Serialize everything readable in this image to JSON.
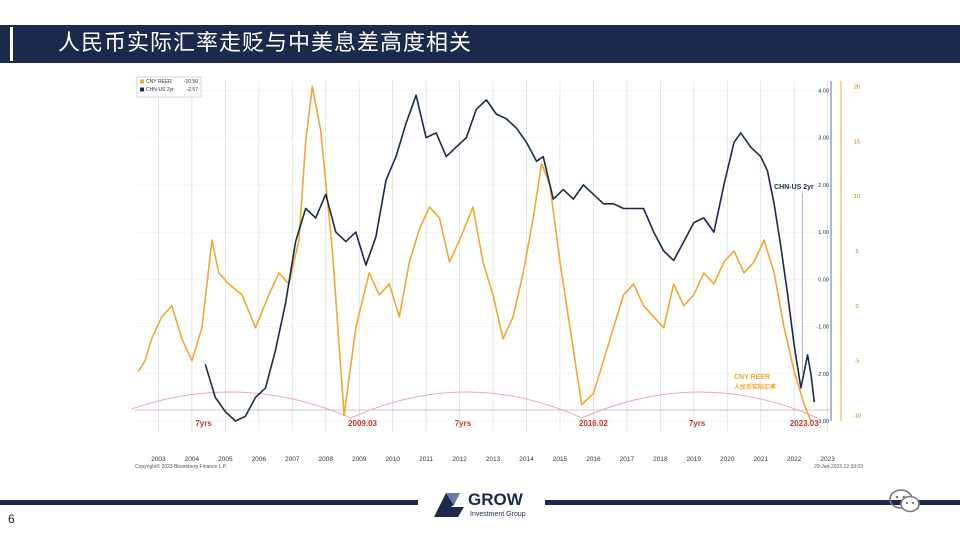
{
  "slide": {
    "title": "人民币实际汇率走贬与中美息差高度相关",
    "page_number": "6",
    "logo_text": "GROW",
    "logo_subtext": "Investment Group",
    "colors": {
      "navy": "#1b2a4c",
      "gold": "#f0a830",
      "pink": "#f2a4b4",
      "crimson": "#c0392b",
      "grid": "#dcdcdc"
    }
  },
  "chart_data": {
    "type": "line",
    "legend": [
      {
        "name": "CNY REER",
        "value": "-10.50",
        "color": "#f0a830"
      },
      {
        "name": "CHN-US 2yr",
        "value": "-2.57",
        "color": "#1b2a4c"
      }
    ],
    "legend_position": "top-left",
    "grid": true,
    "x_ticks": [
      "2003",
      "2004",
      "2005",
      "2006",
      "2007",
      "2008",
      "2009",
      "2010",
      "2011",
      "2012",
      "2013",
      "2014",
      "2015",
      "2016",
      "2017",
      "2018",
      "2019",
      "2020",
      "2021",
      "2022",
      "2023"
    ],
    "xlim": [
      2002.8,
      2023.6
    ],
    "left_axis": {
      "ticks": [
        "4.00",
        "3.00",
        "2.00",
        "1.00",
        "0.00",
        "-1.00",
        "-2.00",
        "-3.00"
      ],
      "range": [
        -3.0,
        4.2
      ]
    },
    "right_axis": {
      "ticks": [
        "20",
        "15",
        "10",
        "5",
        "0",
        "-5",
        "-10"
      ],
      "range": [
        -10.5,
        20.5
      ]
    },
    "series": [
      {
        "name": "CNY REER",
        "axis": "right",
        "points": [
          [
            2002.9,
            -6
          ],
          [
            2003.1,
            -5
          ],
          [
            2003.3,
            -3
          ],
          [
            2003.6,
            -1
          ],
          [
            2003.9,
            0
          ],
          [
            2004.2,
            -3
          ],
          [
            2004.5,
            -5
          ],
          [
            2004.8,
            -2
          ],
          [
            2005.1,
            6
          ],
          [
            2005.3,
            3
          ],
          [
            2005.6,
            2
          ],
          [
            2006.0,
            1
          ],
          [
            2006.4,
            -2
          ],
          [
            2006.8,
            1
          ],
          [
            2007.1,
            3
          ],
          [
            2007.4,
            2
          ],
          [
            2007.7,
            6
          ],
          [
            2007.9,
            15
          ],
          [
            2008.1,
            20
          ],
          [
            2008.35,
            16
          ],
          [
            2008.7,
            5
          ],
          [
            2009.05,
            -10
          ],
          [
            2009.4,
            -2
          ],
          [
            2009.8,
            3
          ],
          [
            2010.1,
            1
          ],
          [
            2010.4,
            2
          ],
          [
            2010.7,
            -1
          ],
          [
            2011.0,
            4
          ],
          [
            2011.3,
            7
          ],
          [
            2011.6,
            9
          ],
          [
            2011.9,
            8
          ],
          [
            2012.2,
            4
          ],
          [
            2012.5,
            6
          ],
          [
            2012.9,
            9
          ],
          [
            2013.2,
            4
          ],
          [
            2013.5,
            1
          ],
          [
            2013.8,
            -3
          ],
          [
            2014.1,
            -1
          ],
          [
            2014.4,
            3
          ],
          [
            2014.7,
            8
          ],
          [
            2014.95,
            13
          ],
          [
            2015.2,
            11
          ],
          [
            2015.5,
            4
          ],
          [
            2015.8,
            -2
          ],
          [
            2016.15,
            -9
          ],
          [
            2016.5,
            -8
          ],
          [
            2016.8,
            -5
          ],
          [
            2017.1,
            -2
          ],
          [
            2017.4,
            1
          ],
          [
            2017.7,
            2
          ],
          [
            2018.0,
            0
          ],
          [
            2018.3,
            -1
          ],
          [
            2018.6,
            -2
          ],
          [
            2018.9,
            2
          ],
          [
            2019.2,
            0
          ],
          [
            2019.5,
            1
          ],
          [
            2019.8,
            3
          ],
          [
            2020.1,
            2
          ],
          [
            2020.4,
            4
          ],
          [
            2020.7,
            5
          ],
          [
            2021.0,
            3
          ],
          [
            2021.3,
            4
          ],
          [
            2021.6,
            6
          ],
          [
            2021.9,
            3
          ],
          [
            2022.2,
            -2
          ],
          [
            2022.5,
            -6
          ],
          [
            2022.8,
            -9
          ],
          [
            2023.0,
            -10.5
          ]
        ]
      },
      {
        "name": "CHN-US 2yr",
        "axis": "left",
        "points": [
          [
            2004.9,
            -1.8
          ],
          [
            2005.2,
            -2.5
          ],
          [
            2005.5,
            -2.8
          ],
          [
            2005.8,
            -3.0
          ],
          [
            2006.1,
            -2.9
          ],
          [
            2006.4,
            -2.5
          ],
          [
            2006.7,
            -2.3
          ],
          [
            2007.0,
            -1.5
          ],
          [
            2007.3,
            -0.5
          ],
          [
            2007.6,
            0.8
          ],
          [
            2007.9,
            1.5
          ],
          [
            2008.2,
            1.3
          ],
          [
            2008.5,
            1.8
          ],
          [
            2008.8,
            1.0
          ],
          [
            2009.1,
            0.8
          ],
          [
            2009.4,
            1.0
          ],
          [
            2009.7,
            0.3
          ],
          [
            2010.0,
            0.9
          ],
          [
            2010.3,
            2.1
          ],
          [
            2010.6,
            2.6
          ],
          [
            2010.9,
            3.3
          ],
          [
            2011.2,
            3.9
          ],
          [
            2011.5,
            3.0
          ],
          [
            2011.8,
            3.1
          ],
          [
            2012.1,
            2.6
          ],
          [
            2012.4,
            2.8
          ],
          [
            2012.7,
            3.0
          ],
          [
            2013.0,
            3.6
          ],
          [
            2013.3,
            3.8
          ],
          [
            2013.6,
            3.5
          ],
          [
            2013.9,
            3.4
          ],
          [
            2014.2,
            3.2
          ],
          [
            2014.5,
            2.9
          ],
          [
            2014.8,
            2.5
          ],
          [
            2015.0,
            2.6
          ],
          [
            2015.3,
            1.7
          ],
          [
            2015.6,
            1.9
          ],
          [
            2015.9,
            1.7
          ],
          [
            2016.2,
            2.0
          ],
          [
            2016.5,
            1.8
          ],
          [
            2016.8,
            1.6
          ],
          [
            2017.1,
            1.6
          ],
          [
            2017.4,
            1.5
          ],
          [
            2017.7,
            1.5
          ],
          [
            2018.0,
            1.5
          ],
          [
            2018.3,
            1.0
          ],
          [
            2018.6,
            0.6
          ],
          [
            2018.9,
            0.4
          ],
          [
            2019.2,
            0.8
          ],
          [
            2019.5,
            1.2
          ],
          [
            2019.8,
            1.3
          ],
          [
            2020.1,
            1.0
          ],
          [
            2020.4,
            2.0
          ],
          [
            2020.7,
            2.9
          ],
          [
            2020.9,
            3.1
          ],
          [
            2021.2,
            2.8
          ],
          [
            2021.5,
            2.6
          ],
          [
            2021.7,
            2.3
          ],
          [
            2021.9,
            1.6
          ],
          [
            2022.1,
            0.7
          ],
          [
            2022.3,
            -0.3
          ],
          [
            2022.5,
            -1.4
          ],
          [
            2022.7,
            -2.3
          ],
          [
            2022.9,
            -1.6
          ],
          [
            2023.0,
            -2.0
          ],
          [
            2023.1,
            -2.6
          ]
        ]
      }
    ],
    "cycles": [
      [
        2002.0,
        2009.25
      ],
      [
        2009.25,
        2016.15
      ],
      [
        2016.15,
        2023.2
      ]
    ],
    "annotations": [
      {
        "text": "7yrs",
        "x": 2004.85,
        "color": "#c0392b"
      },
      {
        "text": "2009.03",
        "x": 2009.6,
        "color": "#c0392b"
      },
      {
        "text": "7yrs",
        "x": 2012.6,
        "color": "#c0392b"
      },
      {
        "text": "2016.02",
        "x": 2016.5,
        "color": "#c0392b"
      },
      {
        "text": "7yrs",
        "x": 2019.6,
        "color": "#c0392b"
      },
      {
        "text": "2023.03",
        "x": 2022.8,
        "color": "#c0392b"
      },
      {
        "text": "CHN-US 2yr",
        "x": 2021.9,
        "color": "#1b2a4c"
      },
      {
        "text": "CNY REER",
        "x": 2020.7,
        "color": "#f0a830"
      },
      {
        "text": "人民币实际汇率",
        "x": 2020.7,
        "color": "#f0a830"
      }
    ],
    "source_left": "Copyright© 2023 Bloomberg Finance L.P.",
    "source_right": "29-Jan-2023 12:33:03"
  }
}
